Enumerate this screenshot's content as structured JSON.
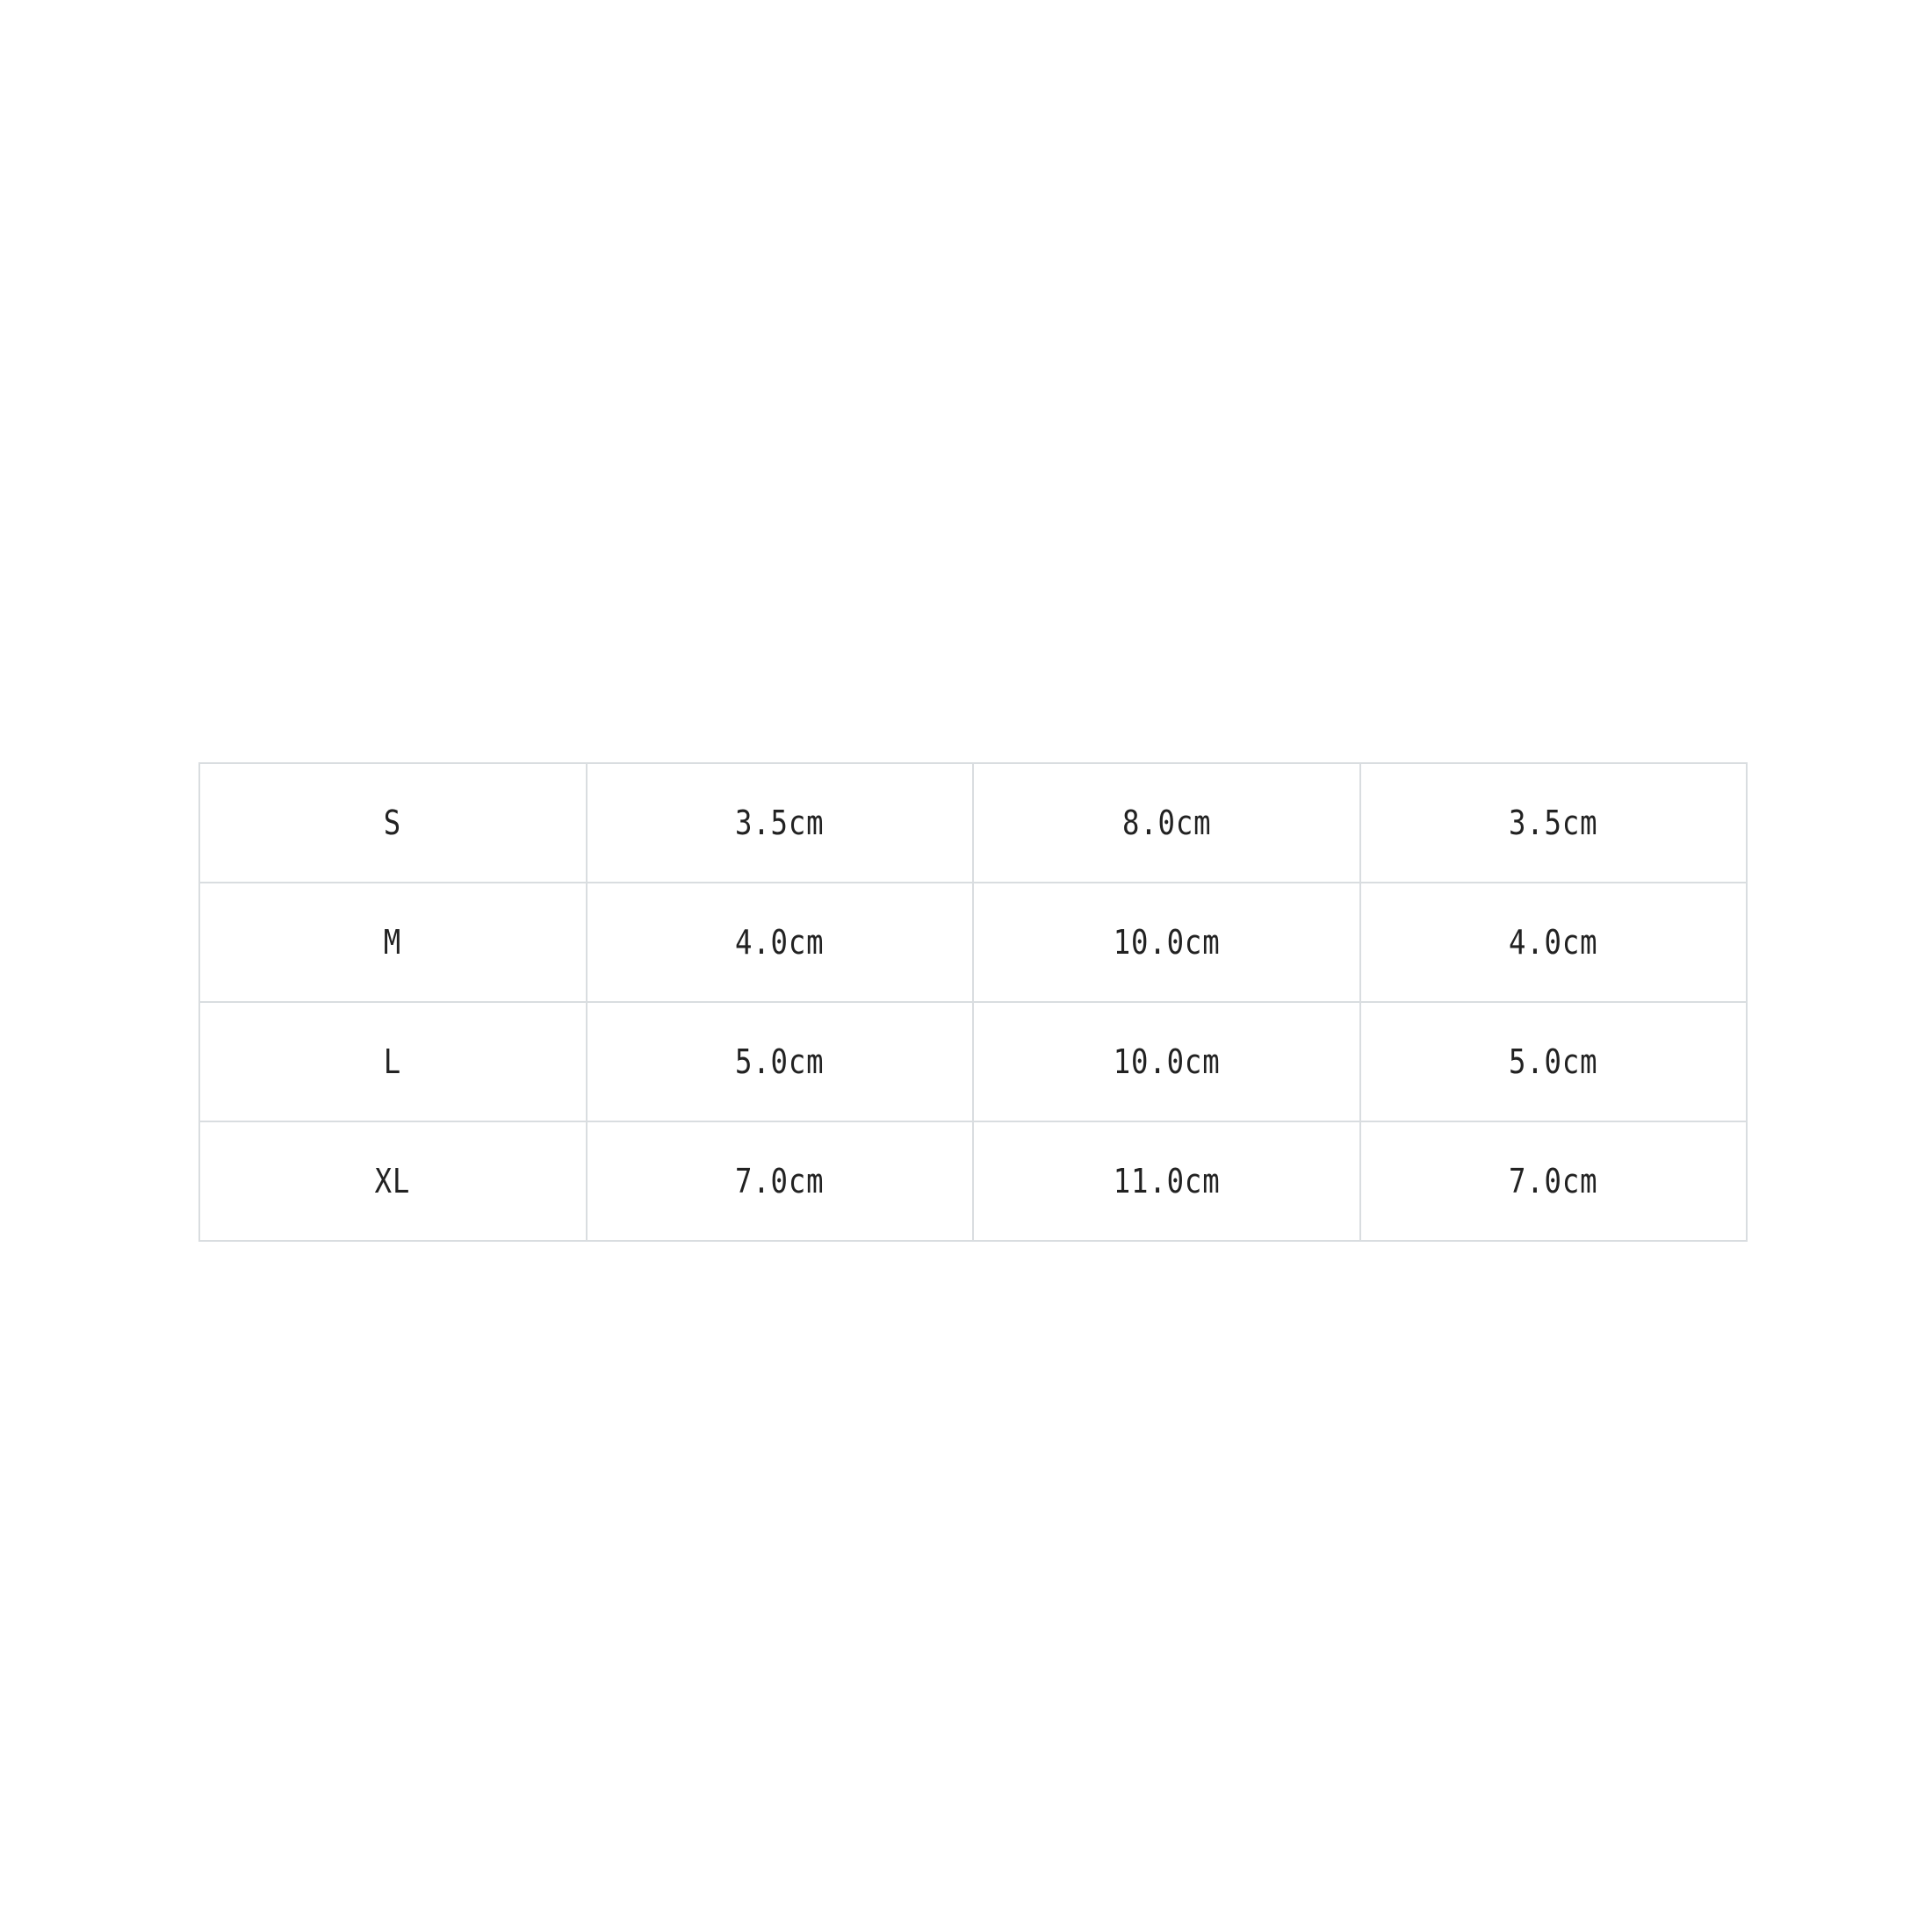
{
  "table": {
    "rows": [
      [
        "S",
        "3.5cm",
        "8.0cm",
        "3.5cm"
      ],
      [
        "M",
        "4.0cm",
        "10.0cm",
        "4.0cm"
      ],
      [
        "L",
        "5.0cm",
        "10.0cm",
        "5.0cm"
      ],
      [
        "XL",
        "7.0cm",
        "11.0cm",
        "7.0cm"
      ]
    ]
  }
}
